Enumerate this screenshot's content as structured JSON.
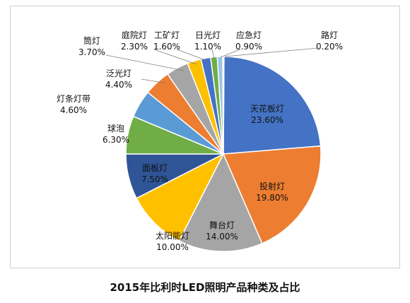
{
  "caption": "2015年比利时LED照明产品种类及占比",
  "chart_data": {
    "type": "pie",
    "title": "",
    "slices": [
      {
        "label": "天花板灯",
        "value": 23.6,
        "value_label": "23.60%",
        "color": "#4472C4"
      },
      {
        "label": "投射灯",
        "value": 19.8,
        "value_label": "19.80%",
        "color": "#ED7D31"
      },
      {
        "label": "舞台灯",
        "value": 14.0,
        "value_label": "14.00%",
        "color": "#A5A5A5"
      },
      {
        "label": "太阳能灯",
        "value": 10.0,
        "value_label": "10.00%",
        "color": "#FFC000"
      },
      {
        "label": "面板灯",
        "value": 7.5,
        "value_label": "7.50%",
        "color": "#2F5597"
      },
      {
        "label": "球泡",
        "value": 6.3,
        "value_label": "6.30%",
        "color": "#70AD47"
      },
      {
        "label": "灯条灯带",
        "value": 4.6,
        "value_label": "4.60%",
        "color": "#5B9BD5"
      },
      {
        "label": "泛光灯",
        "value": 4.4,
        "value_label": "4.40%",
        "color": "#ED7D31"
      },
      {
        "label": "筒灯",
        "value": 3.7,
        "value_label": "3.70%",
        "color": "#A5A5A5"
      },
      {
        "label": "庭院灯",
        "value": 2.3,
        "value_label": "2.30%",
        "color": "#FFC000"
      },
      {
        "label": "工矿灯",
        "value": 1.6,
        "value_label": "1.60%",
        "color": "#4472C4"
      },
      {
        "label": "日光灯",
        "value": 1.1,
        "value_label": "1.10%",
        "color": "#70AD47"
      },
      {
        "label": "应急灯",
        "value": 0.9,
        "value_label": "0.90%",
        "color": "#9DC3E6"
      },
      {
        "label": "路灯",
        "value": 0.2,
        "value_label": "0.20%",
        "color": "#F4B183"
      }
    ]
  }
}
